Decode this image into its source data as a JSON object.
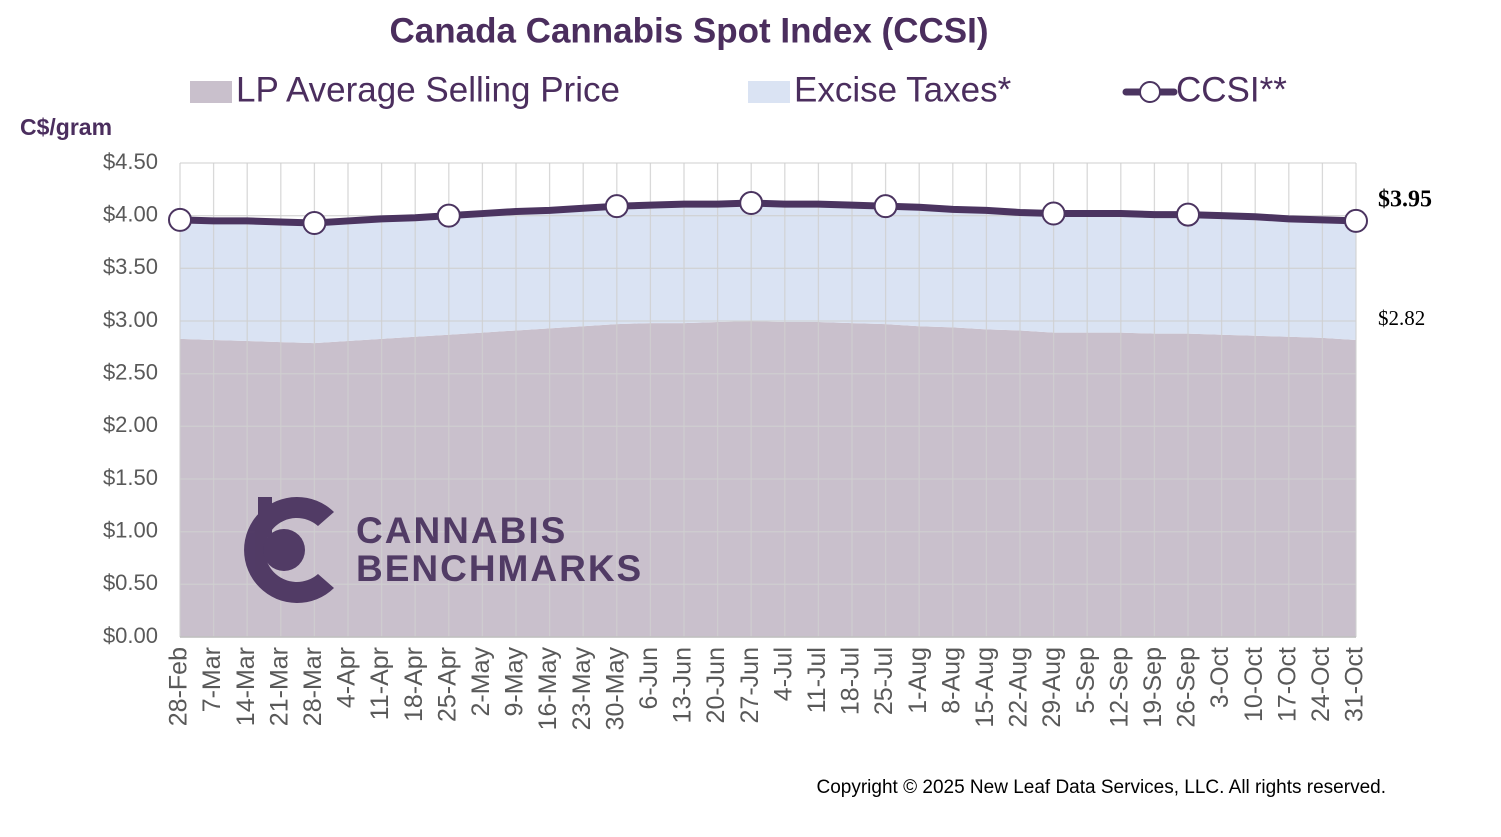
{
  "chart_data": {
    "type": "stacked-area-line",
    "title": "Canada Cannabis Spot Index (CCSI)",
    "y_label": "C$/gram",
    "copyright": "Copyright © 2025 New Leaf Data Services, LLC. All rights reserved.",
    "watermark": [
      "CANNABIS",
      "BENCHMARKS"
    ],
    "categories": [
      "28-Feb",
      "7-Mar",
      "14-Mar",
      "21-Mar",
      "28-Mar",
      "4-Apr",
      "11-Apr",
      "18-Apr",
      "25-Apr",
      "2-May",
      "9-May",
      "16-May",
      "23-May",
      "30-May",
      "6-Jun",
      "13-Jun",
      "20-Jun",
      "27-Jun",
      "4-Jul",
      "11-Jul",
      "18-Jul",
      "25-Jul",
      "1-Aug",
      "8-Aug",
      "15-Aug",
      "22-Aug",
      "29-Aug",
      "5-Sep",
      "12-Sep",
      "19-Sep",
      "26-Sep",
      "3-Oct",
      "10-Oct",
      "17-Oct",
      "24-Oct",
      "31-Oct"
    ],
    "series": [
      {
        "name": "LP Average Selling Price",
        "kind": "area",
        "color": "#c9c0cc",
        "values": [
          2.83,
          2.82,
          2.81,
          2.8,
          2.79,
          2.81,
          2.83,
          2.85,
          2.87,
          2.89,
          2.91,
          2.93,
          2.95,
          2.97,
          2.98,
          2.98,
          2.99,
          3.0,
          2.99,
          2.99,
          2.98,
          2.97,
          2.95,
          2.94,
          2.92,
          2.91,
          2.89,
          2.89,
          2.89,
          2.88,
          2.88,
          2.87,
          2.86,
          2.85,
          2.84,
          2.82
        ],
        "value_labels": [
          null,
          null,
          null,
          null,
          null,
          null,
          null,
          null,
          null,
          null,
          null,
          null,
          null,
          null,
          null,
          null,
          null,
          null,
          null,
          null,
          null,
          null,
          null,
          null,
          null,
          null,
          null,
          null,
          null,
          null,
          null,
          null,
          null,
          null,
          null,
          "$2.82"
        ]
      },
      {
        "name": "Excise Taxes*",
        "kind": "area",
        "color": "#dae3f3",
        "values": [
          1.13,
          1.13,
          1.14,
          1.14,
          1.14,
          1.14,
          1.14,
          1.13,
          1.13,
          1.13,
          1.13,
          1.12,
          1.12,
          1.12,
          1.12,
          1.13,
          1.12,
          1.12,
          1.12,
          1.12,
          1.12,
          1.12,
          1.13,
          1.12,
          1.13,
          1.12,
          1.13,
          1.13,
          1.13,
          1.13,
          1.13,
          1.13,
          1.13,
          1.12,
          1.12,
          1.13
        ]
      },
      {
        "name": "CCSI**",
        "kind": "line",
        "color": "#4b3460",
        "markers": [
          0,
          4,
          8,
          13,
          17,
          21,
          26,
          30,
          35
        ],
        "values": [
          3.96,
          3.95,
          3.95,
          3.94,
          3.93,
          3.95,
          3.97,
          3.98,
          4.0,
          4.02,
          4.04,
          4.05,
          4.07,
          4.09,
          4.1,
          4.11,
          4.11,
          4.12,
          4.11,
          4.11,
          4.1,
          4.09,
          4.08,
          4.06,
          4.05,
          4.03,
          4.02,
          4.02,
          4.02,
          4.01,
          4.01,
          4.0,
          3.99,
          3.97,
          3.96,
          3.95
        ],
        "value_labels": [
          null,
          null,
          null,
          null,
          null,
          null,
          null,
          null,
          null,
          null,
          null,
          null,
          null,
          null,
          null,
          null,
          null,
          null,
          null,
          null,
          null,
          null,
          null,
          null,
          null,
          null,
          null,
          null,
          null,
          null,
          null,
          null,
          null,
          null,
          null,
          "$3.95"
        ]
      }
    ],
    "ylim": [
      0,
      4.5
    ],
    "yticks": [
      {
        "value": 0,
        "label": "$0.00"
      },
      {
        "value": 0.5,
        "label": "$0.50"
      },
      {
        "value": 1,
        "label": "$1.00"
      },
      {
        "value": 1.5,
        "label": "$1.50"
      },
      {
        "value": 2,
        "label": "$2.00"
      },
      {
        "value": 2.5,
        "label": "$2.50"
      },
      {
        "value": 3,
        "label": "$3.00"
      },
      {
        "value": 3.5,
        "label": "$3.50"
      },
      {
        "value": 4,
        "label": "$4.00"
      },
      {
        "value": 4.5,
        "label": "$4.50"
      }
    ],
    "grid": true
  }
}
